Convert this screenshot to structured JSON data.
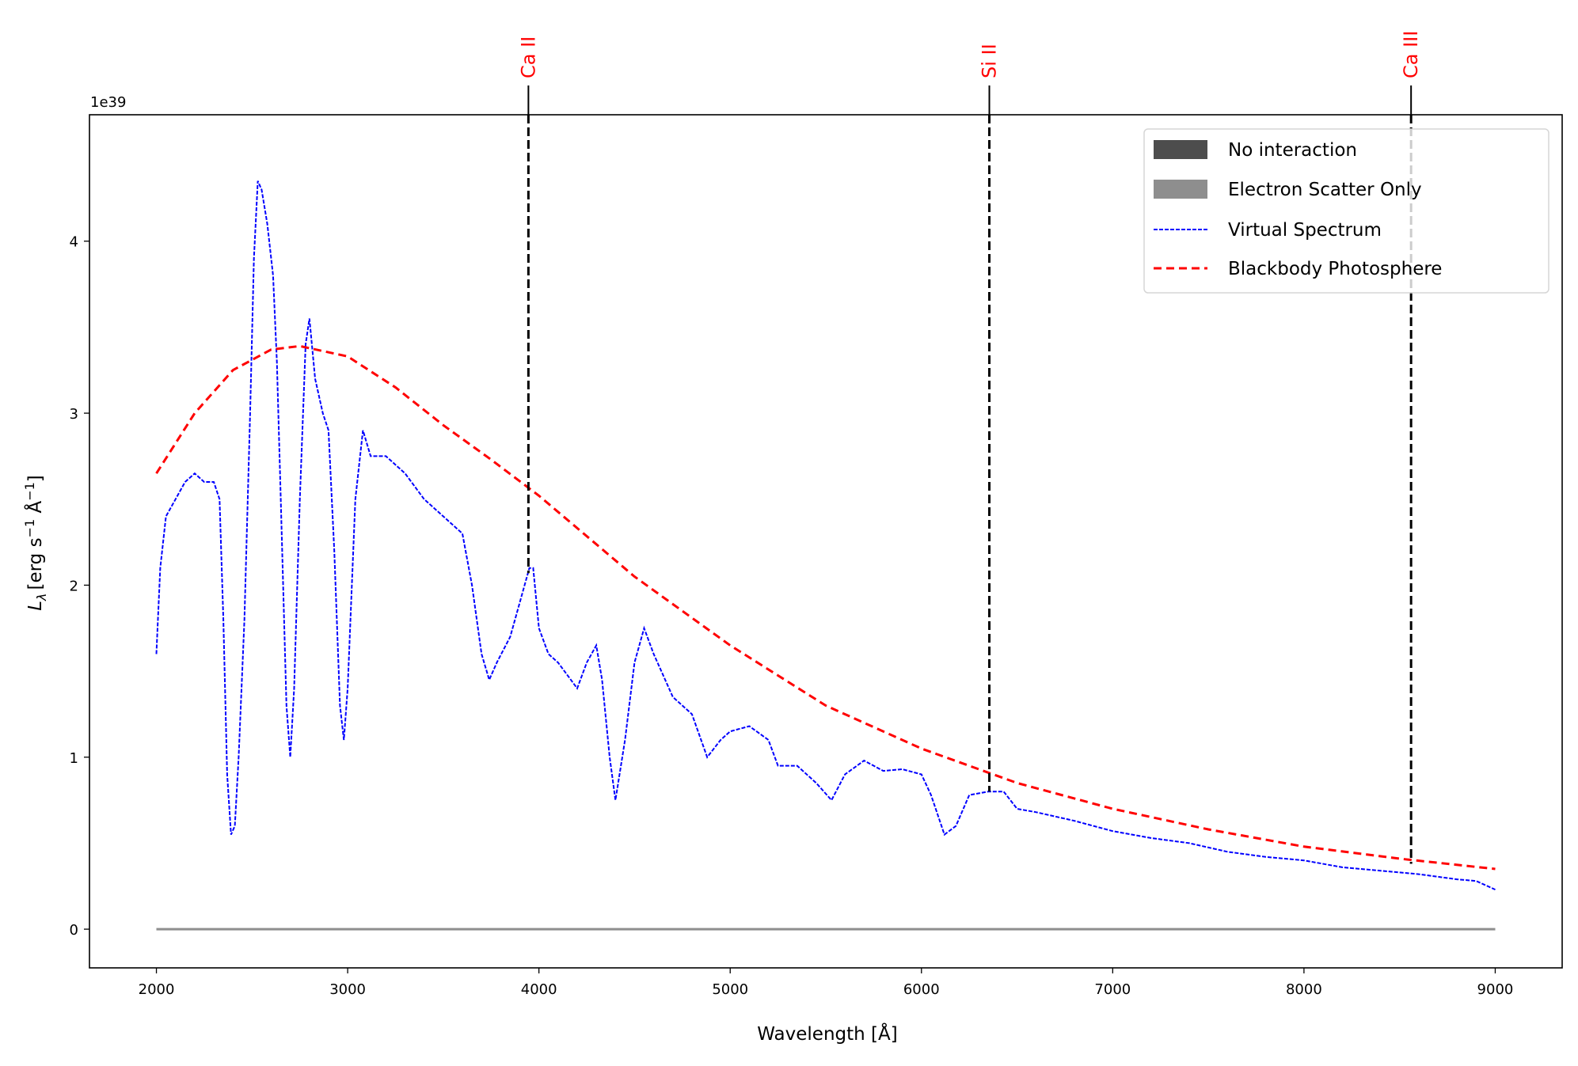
{
  "chart_data": {
    "type": "line",
    "title": "",
    "xlabel": "Wavelength [Å]",
    "ylabel": "L_λ [erg s⁻¹ Å⁻¹]",
    "ylabel_parts": {
      "symbol": "L",
      "sub": "λ",
      "units": "[erg s",
      "exp1": "−1",
      "units2": " Å",
      "exp2": "−1",
      "close": "]"
    },
    "y_offset_label": "1e39",
    "xlim": [
      1650,
      9350
    ],
    "ylim": [
      -0.225,
      4.735
    ],
    "xticks": [
      2000,
      3000,
      4000,
      5000,
      6000,
      7000,
      8000,
      9000
    ],
    "yticks": [
      0,
      1,
      2,
      3,
      4
    ],
    "grid": false,
    "legend_position": "top-right",
    "legend": [
      {
        "label": "No interaction",
        "kind": "patch",
        "color": "#4d4d4d"
      },
      {
        "label": "Electron Scatter Only",
        "kind": "patch",
        "color": "#8e8e8e"
      },
      {
        "label": "Virtual Spectrum",
        "kind": "line",
        "color": "#0000ff"
      },
      {
        "label": "Blackbody Photosphere",
        "kind": "line",
        "color": "#ff0000"
      }
    ],
    "series": [
      {
        "name": "Virtual Spectrum",
        "color": "#0000ff",
        "style": "dashed",
        "x": [
          2000,
          2020,
          2050,
          2100,
          2150,
          2200,
          2250,
          2300,
          2330,
          2350,
          2370,
          2390,
          2410,
          2430,
          2460,
          2490,
          2510,
          2530,
          2550,
          2580,
          2610,
          2630,
          2650,
          2680,
          2700,
          2720,
          2750,
          2780,
          2800,
          2830,
          2870,
          2900,
          2930,
          2960,
          2980,
          3000,
          3040,
          3080,
          3120,
          3200,
          3300,
          3400,
          3500,
          3600,
          3650,
          3700,
          3740,
          3780,
          3850,
          3900,
          3950,
          3970,
          4000,
          4050,
          4100,
          4200,
          4250,
          4300,
          4330,
          4370,
          4400,
          4450,
          4500,
          4550,
          4600,
          4700,
          4800,
          4880,
          4950,
          5000,
          5100,
          5200,
          5250,
          5350,
          5450,
          5530,
          5600,
          5700,
          5800,
          5900,
          6000,
          6050,
          6120,
          6180,
          6250,
          6350,
          6430,
          6500,
          6600,
          6800,
          7000,
          7200,
          7400,
          7600,
          7800,
          8000,
          8200,
          8400,
          8600,
          8800,
          8900,
          9000
        ],
        "y": [
          1.6,
          2.1,
          2.4,
          2.5,
          2.6,
          2.65,
          2.6,
          2.6,
          2.5,
          1.8,
          0.9,
          0.55,
          0.6,
          1.0,
          1.8,
          3.0,
          3.9,
          4.35,
          4.3,
          4.1,
          3.8,
          3.3,
          2.5,
          1.3,
          1.0,
          1.4,
          2.5,
          3.4,
          3.55,
          3.2,
          3.0,
          2.9,
          2.2,
          1.3,
          1.1,
          1.4,
          2.5,
          2.9,
          2.75,
          2.75,
          2.65,
          2.5,
          2.4,
          2.3,
          2.0,
          1.6,
          1.45,
          1.55,
          1.7,
          1.9,
          2.1,
          2.1,
          1.75,
          1.6,
          1.55,
          1.4,
          1.55,
          1.65,
          1.45,
          1.0,
          0.75,
          1.1,
          1.55,
          1.75,
          1.6,
          1.35,
          1.25,
          1.0,
          1.1,
          1.15,
          1.18,
          1.1,
          0.95,
          0.95,
          0.85,
          0.75,
          0.9,
          0.98,
          0.92,
          0.93,
          0.9,
          0.78,
          0.55,
          0.6,
          0.78,
          0.8,
          0.8,
          0.7,
          0.68,
          0.63,
          0.57,
          0.53,
          0.5,
          0.45,
          0.42,
          0.4,
          0.36,
          0.34,
          0.32,
          0.29,
          0.28,
          0.23
        ]
      },
      {
        "name": "Blackbody Photosphere",
        "color": "#ff0000",
        "style": "dashed",
        "x": [
          2000,
          2200,
          2400,
          2600,
          2750,
          3000,
          3250,
          3500,
          3750,
          4000,
          4500,
          5000,
          5500,
          6000,
          6500,
          7000,
          7500,
          8000,
          8500,
          9000
        ],
        "y": [
          2.65,
          3.0,
          3.25,
          3.37,
          3.39,
          3.33,
          3.15,
          2.93,
          2.73,
          2.52,
          2.05,
          1.65,
          1.3,
          1.05,
          0.85,
          0.7,
          0.58,
          0.48,
          0.41,
          0.35
        ]
      },
      {
        "name": "Electron Scatter Only",
        "color": "#8e8e8e",
        "style": "solid",
        "x": [
          2000,
          9000
        ],
        "y": [
          0,
          0
        ]
      }
    ],
    "line_markers": [
      {
        "label": "Ca II",
        "wavelength": 3945,
        "y_end": 2.07
      },
      {
        "label": "Si II",
        "wavelength": 6355,
        "y_end": 0.8
      },
      {
        "label": "Ca III",
        "wavelength": 8560,
        "y_end": 0.38
      }
    ]
  }
}
